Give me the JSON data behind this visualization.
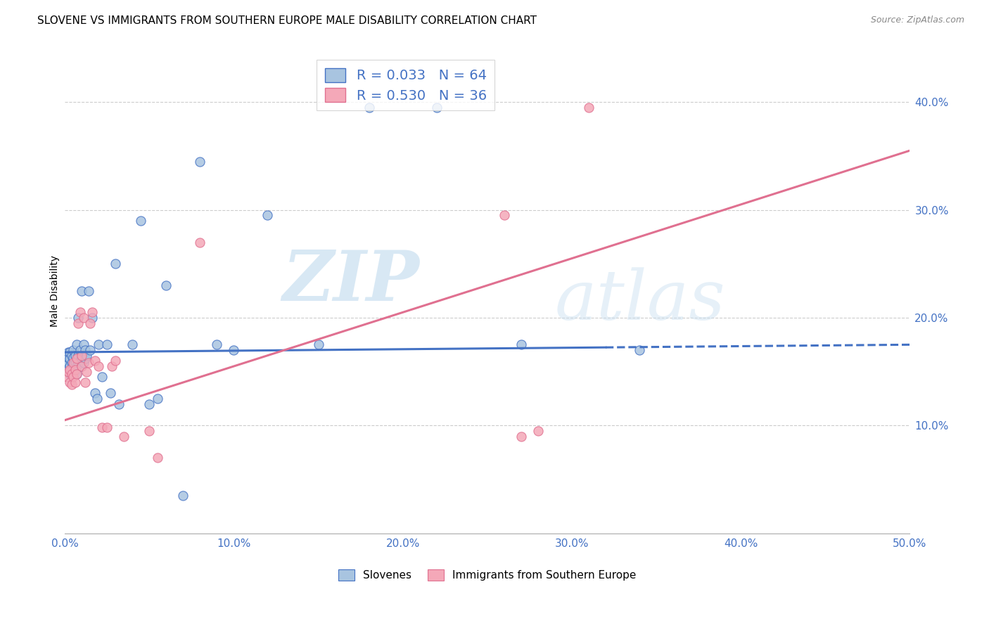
{
  "title": "SLOVENE VS IMMIGRANTS FROM SOUTHERN EUROPE MALE DISABILITY CORRELATION CHART",
  "source": "Source: ZipAtlas.com",
  "xlabel": "",
  "ylabel": "Male Disability",
  "xlim": [
    0.0,
    0.5
  ],
  "ylim": [
    0.0,
    0.45
  ],
  "xticks": [
    0.0,
    0.1,
    0.2,
    0.3,
    0.4,
    0.5
  ],
  "yticks": [
    0.1,
    0.2,
    0.3,
    0.4
  ],
  "ytick_labels": [
    "10.0%",
    "20.0%",
    "30.0%",
    "40.0%"
  ],
  "xtick_labels": [
    "0.0%",
    "10.0%",
    "20.0%",
    "30.0%",
    "40.0%",
    "50.0%"
  ],
  "slovene_color": "#a8c4e0",
  "immigrant_color": "#f4a8b8",
  "slovene_line_color": "#4472c4",
  "immigrant_line_color": "#e07090",
  "legend_label1": "Slovenes",
  "legend_label2": "Immigrants from Southern Europe",
  "watermark_zip": "ZIP",
  "watermark_atlas": "atlas",
  "slovene_scatter_x": [
    0.001,
    0.001,
    0.001,
    0.002,
    0.002,
    0.002,
    0.002,
    0.003,
    0.003,
    0.003,
    0.003,
    0.004,
    0.004,
    0.004,
    0.004,
    0.005,
    0.005,
    0.005,
    0.005,
    0.006,
    0.006,
    0.006,
    0.007,
    0.007,
    0.007,
    0.008,
    0.008,
    0.008,
    0.009,
    0.009,
    0.01,
    0.01,
    0.01,
    0.011,
    0.011,
    0.012,
    0.012,
    0.013,
    0.014,
    0.015,
    0.016,
    0.018,
    0.019,
    0.02,
    0.022,
    0.025,
    0.027,
    0.03,
    0.032,
    0.04,
    0.045,
    0.05,
    0.055,
    0.06,
    0.07,
    0.08,
    0.09,
    0.1,
    0.12,
    0.15,
    0.18,
    0.22,
    0.27,
    0.34
  ],
  "slovene_scatter_y": [
    0.155,
    0.16,
    0.165,
    0.152,
    0.158,
    0.163,
    0.168,
    0.148,
    0.155,
    0.162,
    0.168,
    0.145,
    0.152,
    0.158,
    0.165,
    0.15,
    0.157,
    0.163,
    0.17,
    0.152,
    0.158,
    0.165,
    0.148,
    0.155,
    0.175,
    0.158,
    0.165,
    0.2,
    0.16,
    0.17,
    0.155,
    0.162,
    0.225,
    0.158,
    0.175,
    0.162,
    0.17,
    0.165,
    0.225,
    0.17,
    0.2,
    0.13,
    0.125,
    0.175,
    0.145,
    0.175,
    0.13,
    0.25,
    0.12,
    0.175,
    0.29,
    0.12,
    0.125,
    0.23,
    0.035,
    0.345,
    0.175,
    0.17,
    0.295,
    0.175,
    0.395,
    0.395,
    0.175,
    0.17
  ],
  "immigrant_scatter_x": [
    0.001,
    0.002,
    0.003,
    0.003,
    0.004,
    0.004,
    0.005,
    0.005,
    0.006,
    0.006,
    0.007,
    0.007,
    0.008,
    0.009,
    0.01,
    0.01,
    0.011,
    0.012,
    0.013,
    0.014,
    0.015,
    0.016,
    0.018,
    0.02,
    0.022,
    0.025,
    0.028,
    0.03,
    0.035,
    0.05,
    0.055,
    0.08,
    0.26,
    0.27,
    0.28,
    0.31
  ],
  "immigrant_scatter_y": [
    0.145,
    0.15,
    0.14,
    0.152,
    0.138,
    0.148,
    0.145,
    0.158,
    0.14,
    0.152,
    0.148,
    0.162,
    0.195,
    0.205,
    0.155,
    0.165,
    0.2,
    0.14,
    0.15,
    0.158,
    0.195,
    0.205,
    0.16,
    0.155,
    0.098,
    0.098,
    0.155,
    0.16,
    0.09,
    0.095,
    0.07,
    0.27,
    0.295,
    0.09,
    0.095,
    0.395
  ],
  "slovene_trend_x": [
    0.0,
    0.32,
    0.5
  ],
  "slovene_trend_y": [
    0.168,
    0.172,
    0.175
  ],
  "slovene_trend_solid_end": 0.32,
  "immigrant_trend_x": [
    0.0,
    0.5
  ],
  "immigrant_trend_y": [
    0.105,
    0.355
  ],
  "background_color": "#ffffff",
  "grid_color": "#cccccc",
  "title_fontsize": 11,
  "axis_label_fontsize": 10,
  "tick_fontsize": 11,
  "legend_fontsize": 14
}
